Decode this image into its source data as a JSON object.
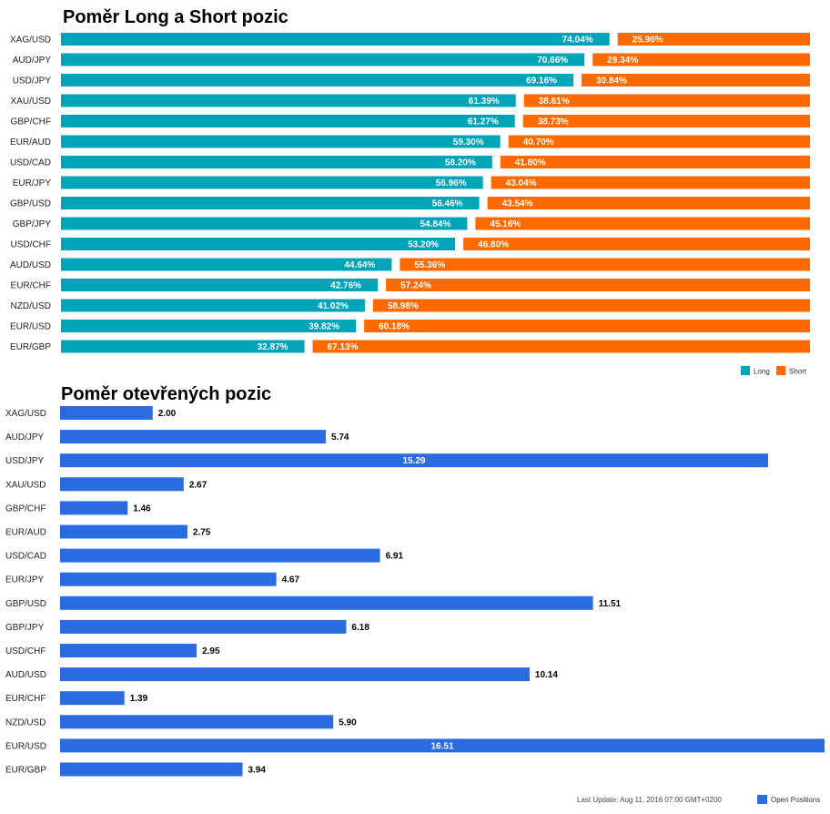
{
  "colors": {
    "long": "#00a4b8",
    "short": "#ff6a00",
    "open": "#2a6bdf"
  },
  "chart_data": [
    {
      "type": "bar",
      "orientation": "horizontal",
      "stacked": "percent",
      "title": "Poměr Long a Short pozic",
      "categories": [
        "XAG/USD",
        "AUD/JPY",
        "USD/JPY",
        "XAU/USD",
        "GBP/CHF",
        "EUR/AUD",
        "USD/CAD",
        "EUR/JPY",
        "GBP/USD",
        "GBP/JPY",
        "USD/CHF",
        "AUD/USD",
        "EUR/CHF",
        "NZD/USD",
        "EUR/USD",
        "EUR/GBP"
      ],
      "series": [
        {
          "name": "Long",
          "values": [
            74.04,
            70.66,
            69.16,
            61.39,
            61.27,
            59.3,
            58.2,
            56.96,
            56.46,
            54.84,
            53.2,
            44.64,
            42.76,
            41.02,
            39.82,
            32.87
          ]
        },
        {
          "name": "Short",
          "values": [
            25.96,
            29.34,
            30.84,
            38.61,
            38.73,
            40.7,
            41.8,
            43.04,
            43.54,
            45.16,
            46.8,
            55.36,
            57.24,
            58.98,
            60.18,
            67.13
          ]
        }
      ],
      "labels": {
        "long": [
          "74.04%",
          "70.66%",
          "69.16%",
          "61.39%",
          "61.27%",
          "59.30%",
          "58.20%",
          "56.96%",
          "56.46%",
          "54.84%",
          "53.20%",
          "44.64%",
          "42.76%",
          "41.02%",
          "39.82%",
          "32.87%"
        ],
        "short": [
          "25.96%",
          "29.34%",
          "30.84%",
          "38.61%",
          "38.73%",
          "40.70%",
          "41.80%",
          "43.04%",
          "43.54%",
          "45.16%",
          "46.80%",
          "55.36%",
          "57.24%",
          "58.98%",
          "60.18%",
          "67.13%"
        ]
      },
      "legend": {
        "position": "bottom-right",
        "items": [
          "Long",
          "Short"
        ]
      },
      "xlim": [
        0,
        100
      ]
    },
    {
      "type": "bar",
      "orientation": "horizontal",
      "title": "Poměr otevřených pozic",
      "categories": [
        "XAG/USD",
        "AUD/JPY",
        "USD/JPY",
        "XAU/USD",
        "GBP/CHF",
        "EUR/AUD",
        "USD/CAD",
        "EUR/JPY",
        "GBP/USD",
        "GBP/JPY",
        "USD/CHF",
        "AUD/USD",
        "EUR/CHF",
        "NZD/USD",
        "EUR/USD",
        "EUR/GBP"
      ],
      "series": [
        {
          "name": "Open Positions",
          "values": [
            2.0,
            5.74,
            15.29,
            2.67,
            1.46,
            2.75,
            6.91,
            4.67,
            11.51,
            6.18,
            2.95,
            10.14,
            1.39,
            5.9,
            16.51,
            3.94
          ]
        }
      ],
      "labels": [
        "2.00",
        "5.74",
        "15.29",
        "2.67",
        "1.46",
        "2.75",
        "6.91",
        "4.67",
        "11.51",
        "6.18",
        "2.95",
        "10.14",
        "1.39",
        "5.90",
        "16.51",
        "3.94"
      ],
      "legend": {
        "position": "bottom-right",
        "items": [
          "Open Positions"
        ]
      },
      "xlim": [
        0,
        16.51
      ]
    }
  ],
  "footer": {
    "last_update": "Last Update: Aug 11, 2016 07:00 GMT+0200"
  }
}
